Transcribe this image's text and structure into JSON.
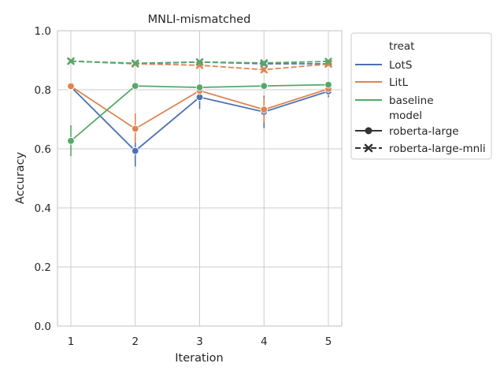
{
  "chart_data": {
    "type": "line",
    "title": "MNLI-mismatched",
    "xlabel": "Iteration",
    "ylabel": "Accuracy",
    "x": [
      1,
      2,
      3,
      4,
      5
    ],
    "xticks": [
      "1",
      "2",
      "3",
      "4",
      "5"
    ],
    "ylim": [
      0.0,
      1.0
    ],
    "yticks": [
      "0.0",
      "0.2",
      "0.4",
      "0.6",
      "0.8",
      "1.0"
    ],
    "grid": true,
    "legend_position": "outside-right",
    "legend": {
      "hue_title": "treat",
      "style_title": "model",
      "hue_entries": [
        {
          "name": "LotS",
          "color": "#4c72b0"
        },
        {
          "name": "LitL",
          "color": "#dd8452"
        },
        {
          "name": "baseline",
          "color": "#55a868"
        }
      ],
      "style_entries": [
        {
          "name": "roberta-large",
          "marker": "circle",
          "dash": "solid"
        },
        {
          "name": "roberta-large-mnli",
          "marker": "x",
          "dash": "dashed"
        }
      ]
    },
    "series": [
      {
        "treat": "LotS",
        "model": "roberta-large",
        "color": "#4c72b0",
        "values": [
          0.81,
          0.593,
          0.775,
          0.725,
          0.795
        ],
        "ci": [
          [
            0.8,
            0.82
          ],
          [
            0.54,
            0.64
          ],
          [
            0.735,
            0.8
          ],
          [
            0.67,
            0.78
          ],
          [
            0.775,
            0.815
          ]
        ]
      },
      {
        "treat": "LitL",
        "model": "roberta-large",
        "color": "#dd8452",
        "values": [
          0.812,
          0.668,
          0.797,
          0.733,
          0.803
        ],
        "ci": [
          [
            0.8,
            0.82
          ],
          [
            0.62,
            0.72
          ],
          [
            0.78,
            0.815
          ],
          [
            0.69,
            0.775
          ],
          [
            0.79,
            0.815
          ]
        ]
      },
      {
        "treat": "baseline",
        "model": "roberta-large",
        "color": "#55a868",
        "values": [
          0.627,
          0.813,
          0.808,
          0.813,
          0.817
        ],
        "ci": [
          [
            0.575,
            0.68
          ],
          [
            0.805,
            0.82
          ],
          [
            0.8,
            0.815
          ],
          [
            0.805,
            0.82
          ],
          [
            0.81,
            0.825
          ]
        ]
      },
      {
        "treat": "LotS",
        "model": "roberta-large-mnli",
        "color": "#4c72b0",
        "values": [
          0.897,
          0.888,
          0.894,
          0.888,
          0.888
        ],
        "ci": [
          [
            0.892,
            0.902
          ],
          [
            0.883,
            0.893
          ],
          [
            0.889,
            0.899
          ],
          [
            0.883,
            0.893
          ],
          [
            0.883,
            0.893
          ]
        ]
      },
      {
        "treat": "LitL",
        "model": "roberta-large-mnli",
        "color": "#dd8452",
        "values": [
          0.897,
          0.888,
          0.883,
          0.868,
          0.887
        ],
        "ci": [
          [
            0.892,
            0.902
          ],
          [
            0.883,
            0.893
          ],
          [
            0.878,
            0.888
          ],
          [
            0.86,
            0.876
          ],
          [
            0.882,
            0.892
          ]
        ]
      },
      {
        "treat": "baseline",
        "model": "roberta-large-mnli",
        "color": "#55a868",
        "values": [
          0.897,
          0.89,
          0.894,
          0.891,
          0.896
        ],
        "ci": [
          [
            0.892,
            0.902
          ],
          [
            0.885,
            0.895
          ],
          [
            0.889,
            0.899
          ],
          [
            0.886,
            0.896
          ],
          [
            0.891,
            0.901
          ]
        ]
      }
    ]
  }
}
